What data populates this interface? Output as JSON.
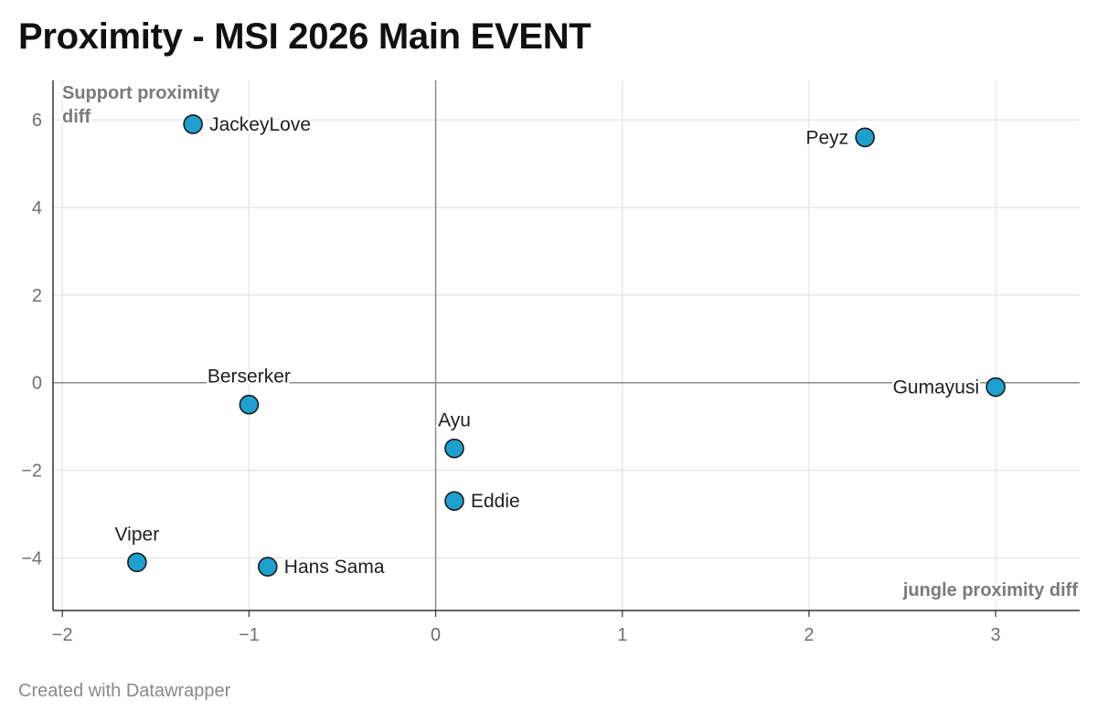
{
  "title": "Proximity - MSI 2026 Main EVENT",
  "footer": "Created with Datawrapper",
  "colors": {
    "point_fill": "#1d9fd0",
    "point_stroke": "#1a1a1a",
    "grid": "#e3e3e3",
    "zero_line": "#8a8a8a",
    "axis_text": "#707070"
  },
  "chart_data": {
    "type": "scatter",
    "title": "Proximity - MSI 2026 Main EVENT",
    "xlabel": "jungle proximity diff",
    "ylabel_lines": [
      "Support proximity",
      "diff"
    ],
    "xlim": [
      -2.05,
      3.45
    ],
    "ylim": [
      -5.2,
      6.9
    ],
    "x_ticks": [
      -2,
      -1,
      0,
      1,
      2,
      3
    ],
    "x_tick_labels": [
      "−2",
      "−1",
      "0",
      "1",
      "2",
      "3"
    ],
    "y_ticks": [
      6,
      4,
      2,
      0,
      -2,
      -4
    ],
    "y_tick_labels": [
      "6",
      "4",
      "2",
      "0",
      "−2",
      "−4"
    ],
    "grid": true,
    "points": [
      {
        "name": "JackeyLove",
        "x": -1.3,
        "y": 5.9,
        "label_pos": "right"
      },
      {
        "name": "Peyz",
        "x": 2.3,
        "y": 5.6,
        "label_pos": "left"
      },
      {
        "name": "Berserker",
        "x": -1.0,
        "y": -0.5,
        "label_pos": "top"
      },
      {
        "name": "Gumayusi",
        "x": 3.0,
        "y": -0.1,
        "label_pos": "left"
      },
      {
        "name": "Ayu",
        "x": 0.1,
        "y": -1.5,
        "label_pos": "top"
      },
      {
        "name": "Eddie",
        "x": 0.1,
        "y": -2.7,
        "label_pos": "right"
      },
      {
        "name": "Viper",
        "x": -1.6,
        "y": -4.1,
        "label_pos": "top"
      },
      {
        "name": "Hans Sama",
        "x": -0.9,
        "y": -4.2,
        "label_pos": "right"
      }
    ]
  }
}
